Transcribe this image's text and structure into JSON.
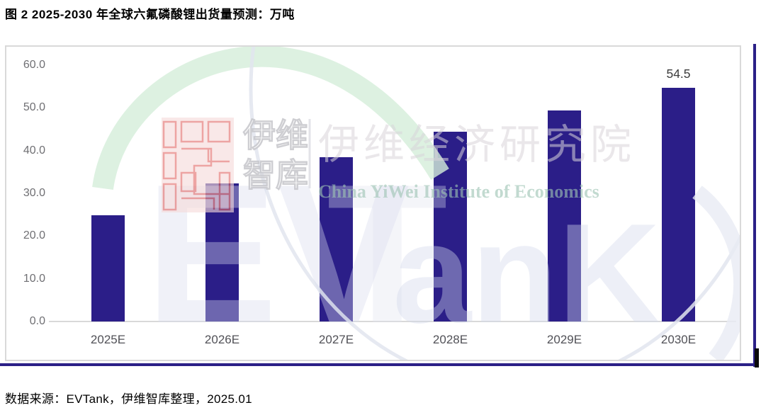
{
  "page": {
    "title": "图 2 2025-2030 年全球六氟磷酸锂出货量预测：万吨",
    "source": "数据来源：EVTank，伊维智库整理，2025.01"
  },
  "chart_data": {
    "type": "bar",
    "title": "2025-2030 年全球六氟磷酸锂出货量预测",
    "unit": "万吨",
    "categories": [
      "2025E",
      "2026E",
      "2027E",
      "2028E",
      "2029E",
      "2030E"
    ],
    "values": [
      24.8,
      32.2,
      38.3,
      44.3,
      49.2,
      54.5
    ],
    "data_labels": [
      "",
      "",
      "",
      "",
      "",
      "54.5"
    ],
    "ylim": [
      0,
      60
    ],
    "ytick_step": 10,
    "yticks": [
      "60.0",
      "50.0",
      "40.0",
      "30.0",
      "20.0",
      "10.0",
      "0.0"
    ],
    "grid": false,
    "legend": "none",
    "bar_color": "#2B1E88",
    "axis_line_color": "#D9D9D9"
  },
  "watermark": {
    "logo_text_cn_1": "伊维",
    "logo_text_cn_2": "智库",
    "institute_cn": "伊维经济研究院",
    "institute_en": "China YiWei Institute of Economics",
    "brand_letters_1": "EV",
    "brand_letters_2": "T",
    "brand_letters_3": "anK"
  },
  "colors": {
    "accent_border": "#2B2087",
    "frame_border": "#D9D9D9"
  }
}
